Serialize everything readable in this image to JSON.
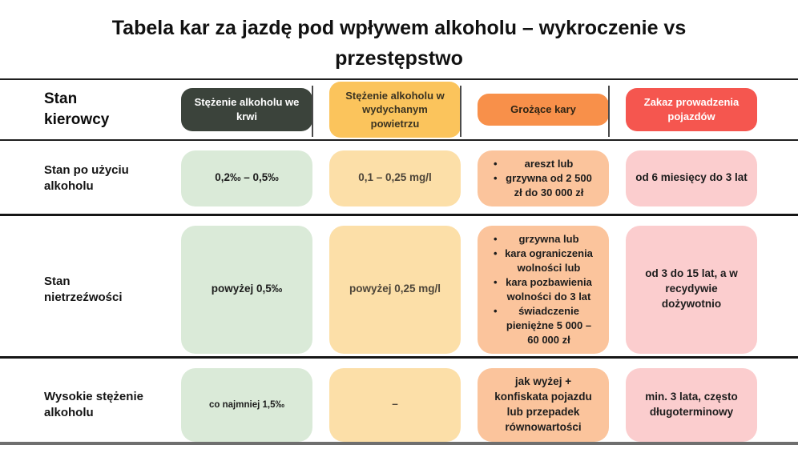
{
  "title": "Tabela kar za jazdę pod wpływem alkoholu – wykroczenie vs przestępstwo",
  "colors": {
    "header_blood_bg": "#3b433b",
    "header_breath_bg": "#fbc45c",
    "header_penalties_bg": "#f8904a",
    "header_ban_bg": "#f5564f",
    "cell_blood_bg": "#daead8",
    "cell_breath_bg": "#fcdfa8",
    "cell_penalties_bg": "#fbc49c",
    "cell_ban_bg": "#fbcdce"
  },
  "table": {
    "corner_label": "Stan kierowcy",
    "columns": [
      {
        "label": "Stężenie alkoholu we krwi"
      },
      {
        "label": "Stężenie alkoholu w wydychanym powietrzu"
      },
      {
        "label": "Grożące kary"
      },
      {
        "label": "Zakaz prowadzenia pojazdów"
      }
    ],
    "rows": [
      {
        "label": "Stan po użyciu alkoholu",
        "blood": "0,2‰ – 0,5‰",
        "breath": "0,1 – 0,25 mg/l",
        "penalties": [
          "areszt lub",
          "grzywna od 2 500 zł do 30 000 zł"
        ],
        "ban": "od 6 miesięcy do 3 lat"
      },
      {
        "label": "Stan nietrzeźwości",
        "blood": "powyżej 0,5‰",
        "breath": "powyżej 0,25 mg/l",
        "penalties": [
          "grzywna lub",
          "kara ograniczenia wolności lub",
          "kara pozbawienia wolności do 3 lat",
          "świadczenie pieniężne 5 000 – 60 000 zł"
        ],
        "ban": "od 3 do 15 lat, a w recydywie dożywotnio"
      },
      {
        "label": "Wysokie stężenie alkoholu",
        "blood": "co najmniej 1,5‰",
        "breath": "–",
        "penalties_text": "jak wyżej + konfiskata pojazdu lub przepadek równowartości",
        "ban": "min. 3 lata, często długoterminowy"
      }
    ]
  }
}
